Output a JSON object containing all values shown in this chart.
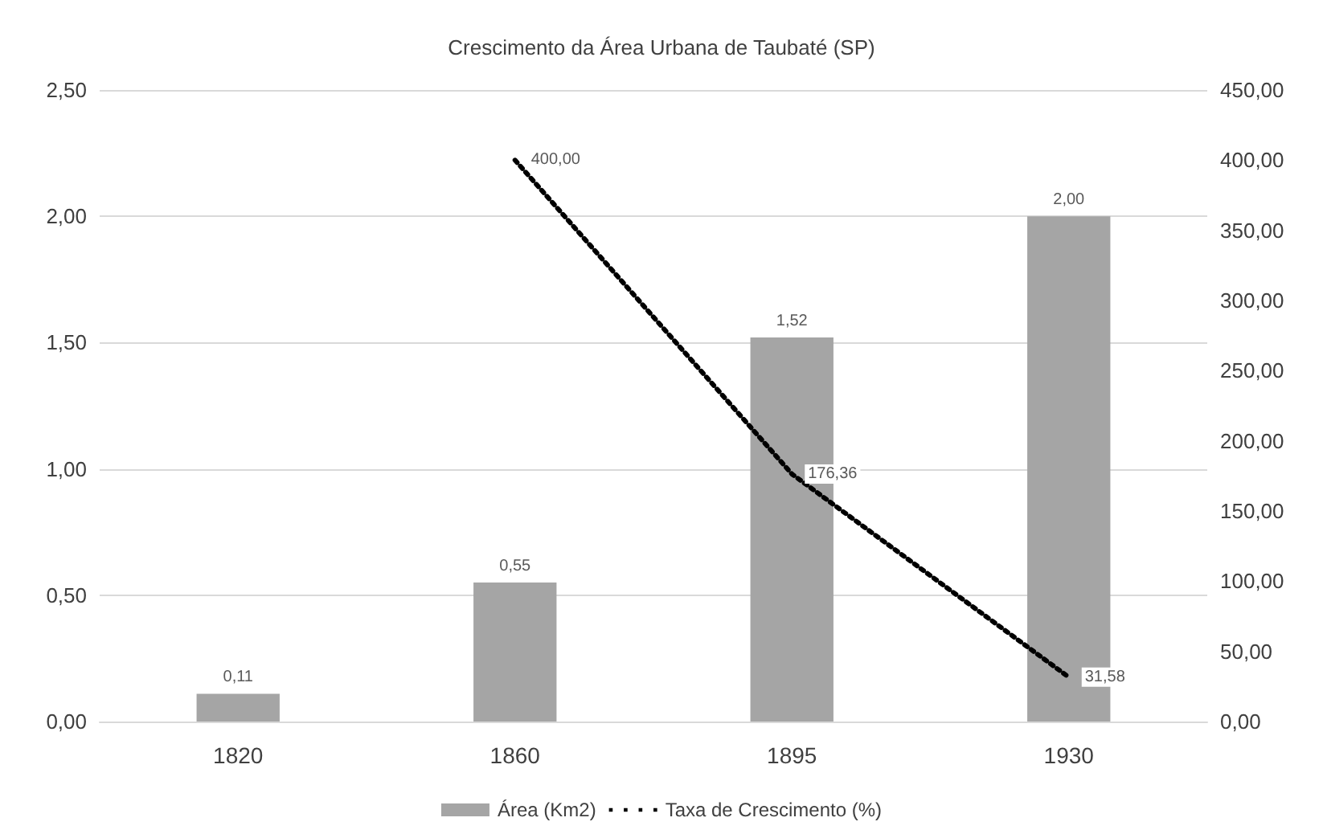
{
  "chart_data": {
    "type": "bar",
    "title": "Crescimento da Área Urbana de Taubaté (SP)",
    "categories": [
      "1820",
      "1860",
      "1895",
      "1930"
    ],
    "series": [
      {
        "name": "Área (Km2)",
        "color": "#a5a5a5",
        "values": [
          0.11,
          0.55,
          1.52,
          2.0
        ],
        "value_labels": [
          "0,11",
          "0,55",
          "1,52",
          "2,00"
        ]
      },
      {
        "name": "Taxa de Crescimento (%)",
        "type": "line",
        "axis": "y2",
        "color": "#000000",
        "line_style": "dotted",
        "marker": "none",
        "values": [
          null,
          400.0,
          176.36,
          31.58
        ],
        "value_labels": [
          null,
          "400,00",
          "176,36",
          "31,58"
        ]
      }
    ],
    "ylim": [
      0,
      2.5
    ],
    "yticks": [
      {
        "value": 0,
        "label": "0,00"
      },
      {
        "value": 0.5,
        "label": "0,50"
      },
      {
        "value": 1,
        "label": "1,00"
      },
      {
        "value": 1.5,
        "label": "1,50"
      },
      {
        "value": 2,
        "label": "2,00"
      },
      {
        "value": 2.5,
        "label": "2,50"
      }
    ],
    "y2lim": [
      0,
      450
    ],
    "y2ticks": [
      {
        "value": 0,
        "label": "0,00"
      },
      {
        "value": 50,
        "label": "50,00"
      },
      {
        "value": 100,
        "label": "100,00"
      },
      {
        "value": 150,
        "label": "150,00"
      },
      {
        "value": 200,
        "label": "200,00"
      },
      {
        "value": 250,
        "label": "250,00"
      },
      {
        "value": 300,
        "label": "300,00"
      },
      {
        "value": 350,
        "label": "350,00"
      },
      {
        "value": 400,
        "label": "400,00"
      },
      {
        "value": 450,
        "label": "450,00"
      }
    ],
    "grid": "y",
    "legend": "bottom"
  }
}
